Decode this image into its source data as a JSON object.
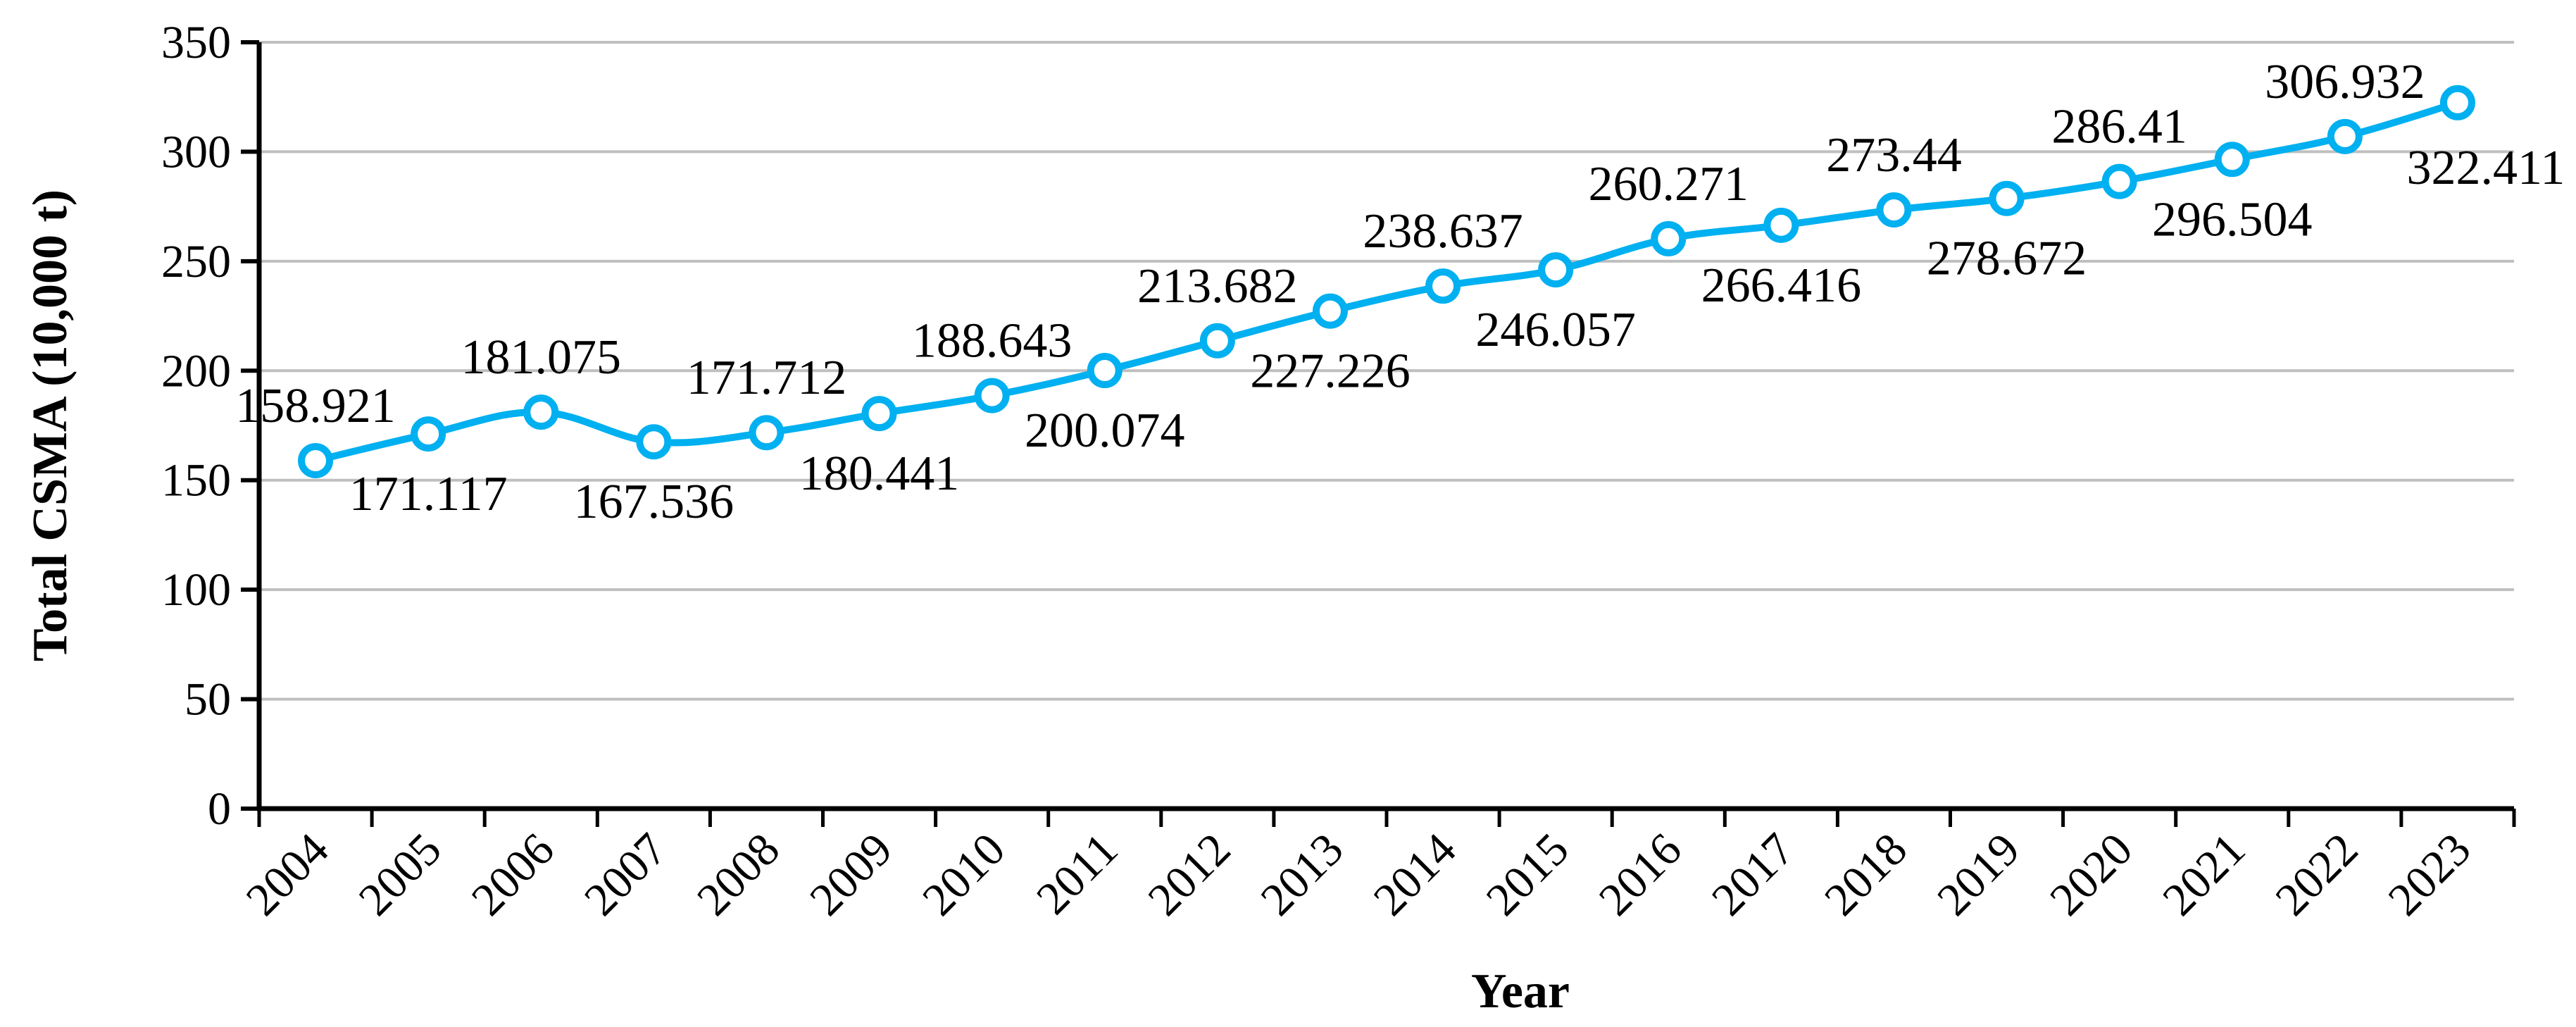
{
  "chart_data": {
    "type": "line",
    "title": "",
    "xlabel": "Year",
    "ylabel": "Total CSMA (10,000 t)",
    "ylim": [
      0,
      350
    ],
    "yticks": [
      0,
      50,
      100,
      150,
      200,
      250,
      300,
      350
    ],
    "categories": [
      "2004",
      "2005",
      "2006",
      "2007",
      "2008",
      "2009",
      "2010",
      "2011",
      "2012",
      "2013",
      "2014",
      "2015",
      "2016",
      "2017",
      "2018",
      "2019",
      "2020",
      "2021",
      "2022",
      "2023"
    ],
    "series": [
      {
        "values": [
          158.921,
          171.117,
          181.075,
          167.536,
          171.712,
          180.441,
          188.643,
          200.074,
          213.682,
          227.226,
          238.637,
          246.057,
          260.271,
          266.416,
          273.44,
          278.672,
          286.41,
          296.504,
          306.932,
          322.411
        ],
        "data_labels": [
          "158.921",
          "171.117",
          "181.075",
          "167.536",
          "171.712",
          "180.441",
          "188.643",
          "200.074",
          "213.682",
          "227.226",
          "238.637",
          "246.057",
          "260.271",
          "266.416",
          "273.44",
          "278.672",
          "286.41",
          "296.504",
          "306.932",
          "322.411"
        ],
        "color": "#00B0F0"
      }
    ],
    "grid": true,
    "legend": "none"
  }
}
